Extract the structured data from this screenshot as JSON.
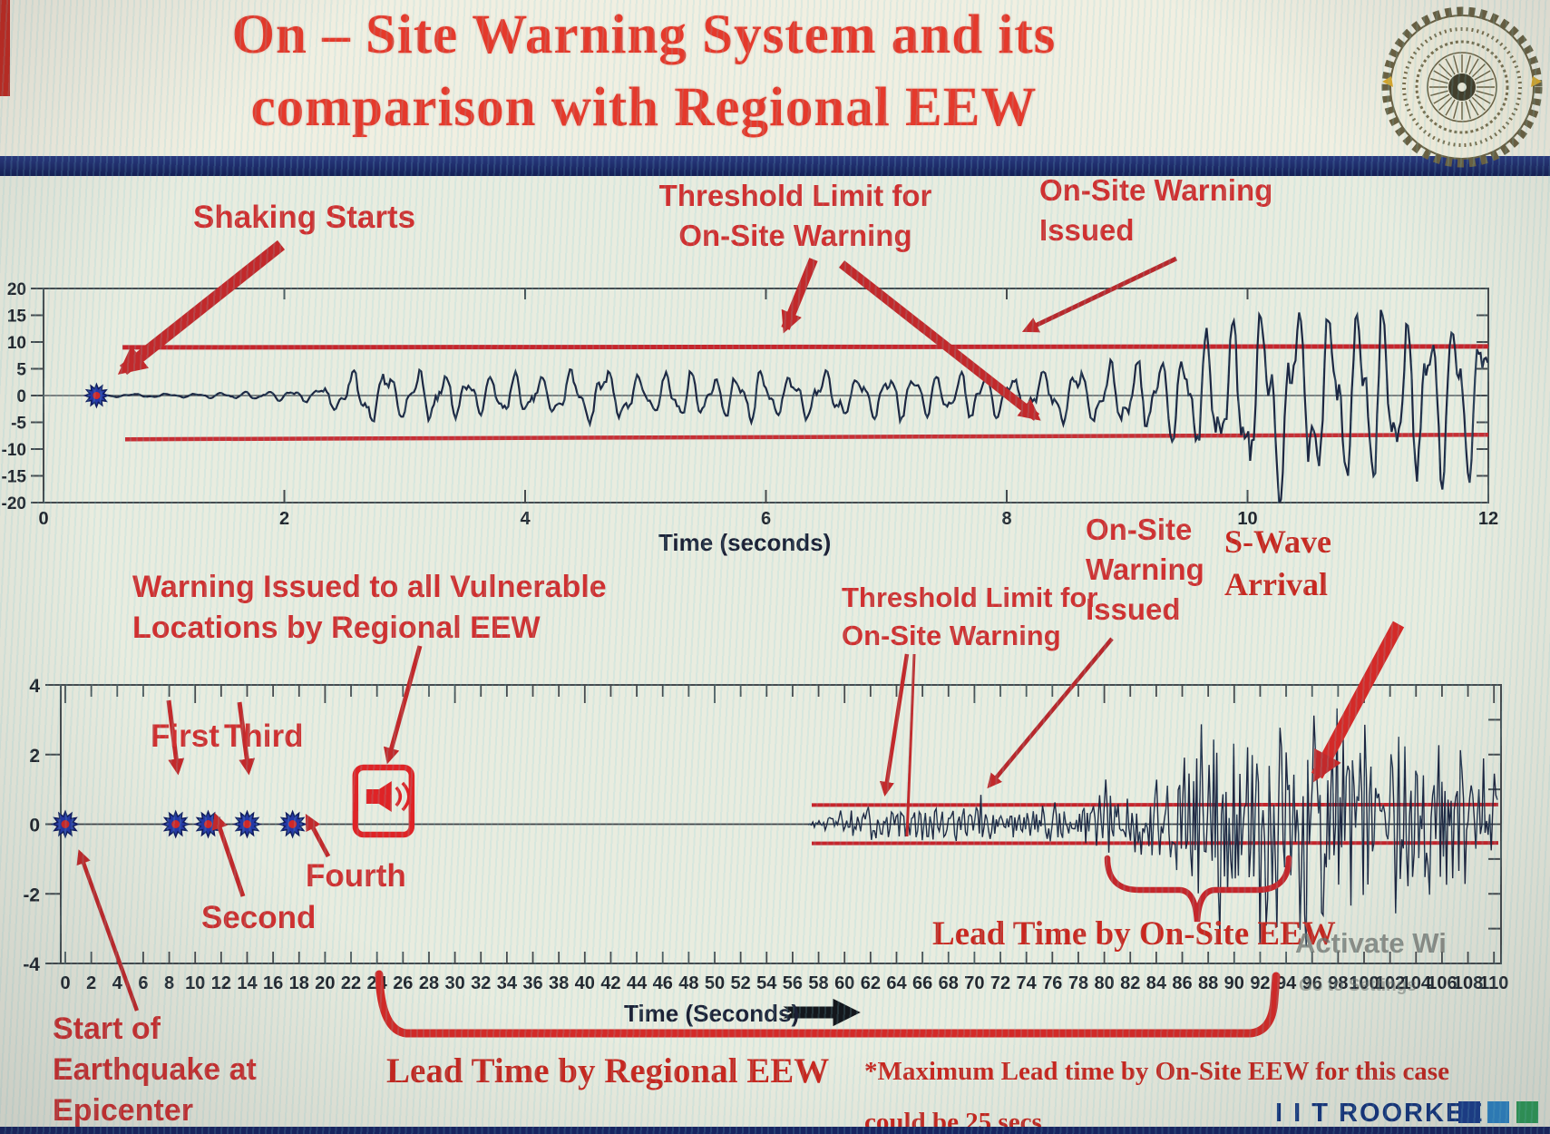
{
  "header": {
    "title_line1": "On – Site Warning System and its",
    "title_line2": "comparison with Regional EEW",
    "logo": "iit-roorkee-emblem"
  },
  "top_chart_labels": {
    "shaking": "Shaking Starts",
    "threshold1": "Threshold Limit for",
    "threshold2": "On-Site Warning",
    "warning1": "On-Site Warning",
    "warning2": "Issued",
    "xlabel": "Time (seconds)"
  },
  "bottom_chart_labels": {
    "regional1": "Warning Issued to all Vulnerable",
    "regional2": "Locations by Regional EEW",
    "first": "First",
    "second": "Second",
    "third": "Third",
    "fourth": "Fourth",
    "start1": "Start of",
    "start2": "Earthquake at",
    "start3": "Epicenter",
    "threshold1": "Threshold Limit for",
    "threshold2": "On-Site Warning",
    "onsite1": "On-Site",
    "onsite2": "Warning",
    "onsite3": "Issued",
    "swave1": "S-Wave",
    "swave2": "Arrival",
    "lead_onsite": "Lead Time by On-Site EEW",
    "lead_regional": "Lead Time by Regional EEW",
    "note1": "*Maximum Lead time by On-Site EEW for this case",
    "note2": "could be 25 secs",
    "xlabel": "Time (Seconds)"
  },
  "footer": {
    "brand": "I I T ROORKEE",
    "watermark1": "Activate Wi",
    "watermark2": "Go to Settings"
  },
  "colors": {
    "title_red": "#e5392b",
    "annotation_red": "#d03030",
    "threshold_red": "#c6252c",
    "waveform_navy": "#1c2742",
    "axis_gray": "#454b4f",
    "navy_bar": "#172462",
    "brand_navy": "#14357f",
    "star_blue": "#2438a6",
    "star_center_red": "#d12828"
  },
  "chart_data": [
    {
      "type": "line",
      "name": "on-site-warning-seismogram",
      "xlabel": "Time (seconds)",
      "xlim": [
        0,
        12
      ],
      "ylim": [
        -20,
        20
      ],
      "xticks": [
        0,
        2,
        4,
        6,
        8,
        10,
        12
      ],
      "yticks": [
        20,
        15,
        10,
        5,
        0,
        -5,
        -10,
        -15,
        -20
      ],
      "threshold_upper": 9,
      "threshold_lower": -8,
      "shaking_start_t": 0.44,
      "onsite_warning_issued_t": 8.1,
      "envelope_t_amp": [
        [
          0.44,
          0.25
        ],
        [
          0.8,
          0.3
        ],
        [
          1.2,
          0.35
        ],
        [
          1.6,
          0.6
        ],
        [
          2.0,
          0.9
        ],
        [
          2.3,
          1.3
        ],
        [
          2.45,
          3.2
        ],
        [
          2.6,
          4.6
        ],
        [
          2.8,
          4.9
        ],
        [
          3.0,
          3.8
        ],
        [
          3.2,
          4.6
        ],
        [
          3.5,
          3.2
        ],
        [
          3.8,
          4.2
        ],
        [
          4.1,
          3.0
        ],
        [
          4.4,
          4.4
        ],
        [
          4.7,
          4.8
        ],
        [
          5.0,
          3.2
        ],
        [
          5.3,
          4.6
        ],
        [
          5.6,
          3.4
        ],
        [
          5.9,
          4.8
        ],
        [
          6.2,
          3.4
        ],
        [
          6.5,
          4.4
        ],
        [
          6.8,
          3.2
        ],
        [
          7.1,
          4.3
        ],
        [
          7.4,
          3.3
        ],
        [
          7.7,
          4.4
        ],
        [
          8.0,
          3.6
        ],
        [
          8.3,
          4.2
        ],
        [
          8.6,
          4.8
        ],
        [
          8.9,
          5.6
        ],
        [
          9.2,
          7.0
        ],
        [
          9.5,
          9.5
        ],
        [
          9.8,
          12.5
        ],
        [
          10.1,
          15.5
        ],
        [
          10.4,
          17.5
        ],
        [
          10.7,
          14.5
        ],
        [
          11.0,
          17.0
        ],
        [
          11.3,
          13.5
        ],
        [
          11.6,
          15.5
        ],
        [
          11.9,
          13.0
        ],
        [
          12.0,
          12.5
        ]
      ]
    },
    {
      "type": "line",
      "name": "regional-vs-onsite-timeline-seismogram",
      "xlabel": "Time (Seconds)",
      "xlim": [
        0,
        111
      ],
      "ylim": [
        -4,
        4
      ],
      "xticks": [
        0,
        2,
        4,
        6,
        8,
        10,
        12,
        14,
        16,
        18,
        20,
        22,
        24,
        26,
        28,
        30,
        32,
        34,
        36,
        38,
        40,
        42,
        44,
        46,
        48,
        50,
        52,
        54,
        56,
        58,
        60,
        62,
        64,
        66,
        68,
        70,
        72,
        74,
        76,
        78,
        80,
        82,
        84,
        86,
        88,
        90,
        92,
        94,
        96,
        98,
        100,
        102,
        104,
        106,
        108,
        110
      ],
      "yticks": [
        4,
        2,
        0,
        -2,
        -4
      ],
      "right_ticks": [
        3,
        2,
        1,
        -1,
        -2,
        -3
      ],
      "threshold_upper": 0.55,
      "threshold_lower": -0.55,
      "epicenter_t": 0,
      "p_wave_detections": [
        {
          "label": "First",
          "t": 8.5
        },
        {
          "label": "Second",
          "t": 11
        },
        {
          "label": "Third",
          "t": 14
        },
        {
          "label": "Fourth",
          "t": 17.5
        }
      ],
      "regional_warning_t": 24.5,
      "onsite_warning_t": 80,
      "s_wave_arrival_t": 94,
      "onsite_lead_time_span": [
        80,
        94
      ],
      "regional_lead_time_span": [
        24,
        93
      ],
      "max_onsite_lead_secs": 25,
      "envelope_t_amp": [
        [
          57.2,
          0.02
        ],
        [
          58,
          0.12
        ],
        [
          59,
          0.2
        ],
        [
          60,
          0.28
        ],
        [
          61,
          0.33
        ],
        [
          62,
          0.38
        ],
        [
          63,
          0.3
        ],
        [
          64,
          0.34
        ],
        [
          65,
          0.42
        ],
        [
          66,
          0.36
        ],
        [
          67,
          0.44
        ],
        [
          68,
          0.36
        ],
        [
          69,
          0.42
        ],
        [
          70,
          0.46
        ],
        [
          71,
          0.4
        ],
        [
          72,
          0.46
        ],
        [
          73,
          0.42
        ],
        [
          74,
          0.5
        ],
        [
          75,
          0.46
        ],
        [
          76,
          0.52
        ],
        [
          77,
          0.48
        ],
        [
          78,
          0.55
        ],
        [
          79,
          0.6
        ],
        [
          80,
          0.68
        ],
        [
          81,
          0.75
        ],
        [
          82,
          0.85
        ],
        [
          83,
          0.95
        ],
        [
          84,
          1.0
        ],
        [
          85,
          1.15
        ],
        [
          86,
          1.35
        ],
        [
          87,
          2.0
        ],
        [
          88,
          2.9
        ],
        [
          88.8,
          3.15
        ],
        [
          89.5,
          2.5
        ],
        [
          90.3,
          2.95
        ],
        [
          91,
          2.3
        ],
        [
          92,
          2.75
        ],
        [
          93,
          2.35
        ],
        [
          94,
          2.65
        ],
        [
          95,
          2.3
        ],
        [
          96,
          2.8
        ],
        [
          97,
          2.25
        ],
        [
          98,
          2.6
        ],
        [
          99,
          2.1
        ],
        [
          100,
          2.45
        ],
        [
          101,
          1.95
        ],
        [
          102,
          2.3
        ],
        [
          103,
          1.85
        ],
        [
          104,
          2.15
        ],
        [
          105,
          1.7
        ],
        [
          106,
          2.0
        ],
        [
          107,
          1.6
        ],
        [
          108,
          1.85
        ],
        [
          109,
          1.45
        ],
        [
          110,
          1.7
        ],
        [
          111,
          1.3
        ]
      ]
    }
  ]
}
